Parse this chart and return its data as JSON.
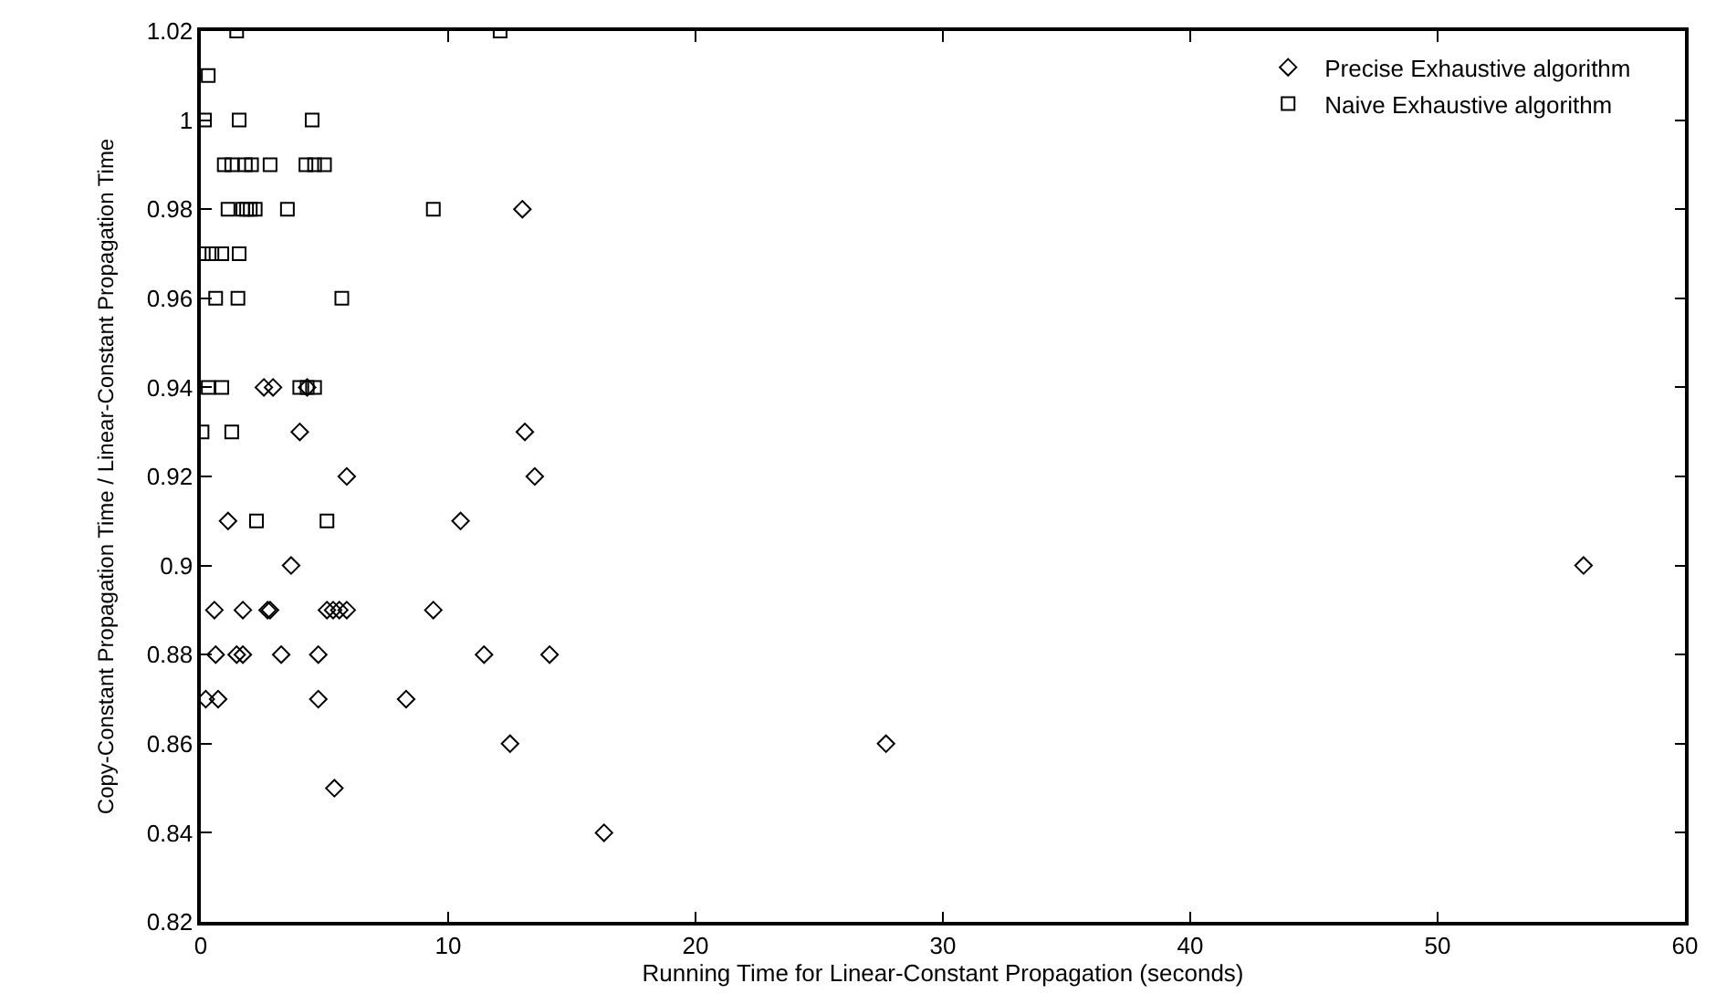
{
  "chart_data": {
    "type": "scatter",
    "xlabel": "Running Time for Linear-Constant Propagation (seconds)",
    "ylabel": "Copy-Constant Propagation Time / Linear-Constant Propagation Time",
    "xlim": [
      0,
      60
    ],
    "xticks": [
      0,
      10,
      20,
      30,
      40,
      50,
      60
    ],
    "ylim": [
      0.82,
      1.02
    ],
    "yticks": [
      0.82,
      0.84,
      0.86,
      0.88,
      0.9,
      0.92,
      0.94,
      0.96,
      0.98,
      1,
      1.02
    ],
    "legend": "top right",
    "series": [
      {
        "name": "Precise Exhaustive algorithm",
        "color": "#000000",
        "marker": "diamond",
        "x": [
          13.0,
          2.55,
          2.92,
          4.3,
          4.0,
          13.1,
          5.9,
          13.5,
          1.1,
          10.5,
          3.65,
          55.9,
          0.55,
          1.7,
          2.7,
          2.8,
          5.1,
          5.35,
          5.6,
          5.9,
          9.4,
          0.6,
          1.45,
          1.7,
          3.25,
          4.75,
          11.45,
          14.1,
          0.2,
          0.7,
          4.75,
          8.3,
          12.5,
          27.7,
          5.4,
          16.3
        ],
        "values": [
          0.98,
          0.94,
          0.94,
          0.94,
          0.93,
          0.93,
          0.92,
          0.92,
          0.91,
          0.91,
          0.9,
          0.9,
          0.89,
          0.89,
          0.89,
          0.89,
          0.89,
          0.89,
          0.89,
          0.89,
          0.89,
          0.88,
          0.88,
          0.88,
          0.88,
          0.88,
          0.88,
          0.88,
          0.87,
          0.87,
          0.87,
          0.87,
          0.86,
          0.86,
          0.85,
          0.84
        ]
      },
      {
        "name": "Naive Exhaustive algorithm",
        "color": "#000000",
        "marker": "square",
        "x": [
          1.45,
          12.1,
          0.3,
          0.15,
          1.55,
          4.5,
          0.95,
          1.25,
          1.8,
          2.05,
          2.8,
          4.25,
          4.6,
          5.0,
          1.1,
          1.7,
          1.85,
          2.0,
          2.2,
          3.5,
          9.4,
          0.1,
          0.45,
          0.85,
          1.55,
          0.6,
          1.5,
          5.7,
          0.3,
          0.85,
          4.0,
          4.3,
          4.6,
          0.05,
          1.25,
          2.25,
          5.1
        ],
        "values": [
          1.02,
          1.02,
          1.01,
          1.0,
          1.0,
          1.0,
          0.99,
          0.99,
          0.99,
          0.99,
          0.99,
          0.99,
          0.99,
          0.99,
          0.98,
          0.98,
          0.98,
          0.98,
          0.98,
          0.98,
          0.98,
          0.97,
          0.97,
          0.97,
          0.97,
          0.96,
          0.96,
          0.96,
          0.94,
          0.94,
          0.94,
          0.94,
          0.94,
          0.93,
          0.93,
          0.91,
          0.91
        ]
      }
    ]
  }
}
